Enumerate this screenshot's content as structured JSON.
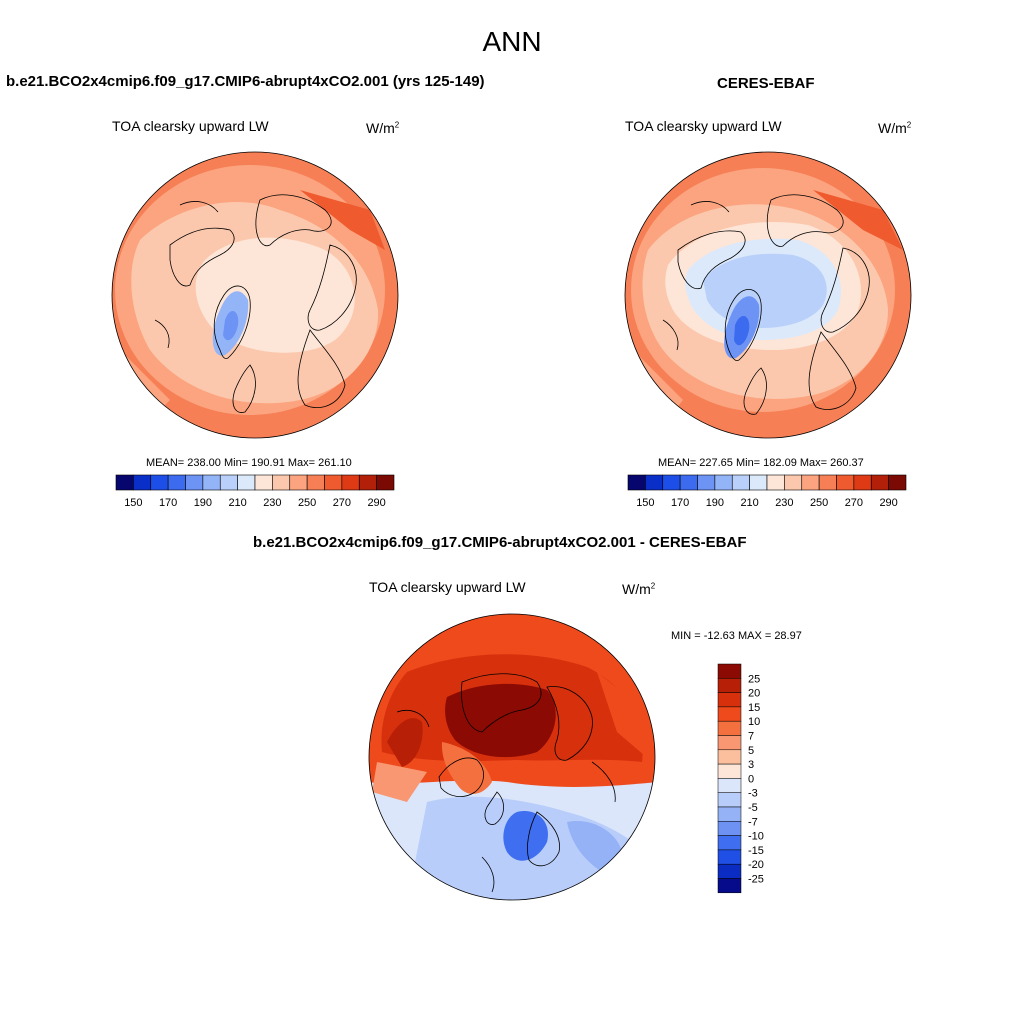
{
  "page": {
    "title": "ANN"
  },
  "panels": {
    "model": {
      "title": "b.e21.BCO2x4cmip6.f09_g17.CMIP6-abrupt4xCO2.001 (yrs 125-149)",
      "variable": "TOA clearsky upward LW",
      "units_base": "W/m",
      "units_exp": "2",
      "stats": "MEAN= 238.00  Min= 190.91  Max= 261.10"
    },
    "obs": {
      "title": "CERES-EBAF",
      "variable": "TOA clearsky upward LW",
      "units_base": "W/m",
      "units_exp": "2",
      "stats": "MEAN= 227.65  Min= 182.09  Max= 260.37"
    },
    "diff": {
      "title": "b.e21.BCO2x4cmip6.f09_g17.CMIP6-abrupt4xCO2.001 - CERES-EBAF",
      "variable": "TOA clearsky upward LW",
      "units_base": "W/m",
      "units_exp": "2",
      "stats": "MIN = -12.63 MAX =  28.97"
    }
  },
  "chart_data": [
    {
      "type": "heatmap",
      "projection": "north-polar-stereographic",
      "title": "b.e21.BCO2x4cmip6.f09_g17.CMIP6-abrupt4xCO2.001 (yrs 125-149)",
      "variable": "TOA clearsky upward LW",
      "units": "W/m2",
      "mean": 238.0,
      "min": 190.91,
      "max": 261.1,
      "colorbar": {
        "orientation": "horizontal",
        "levels": [
          150,
          160,
          170,
          180,
          190,
          200,
          210,
          220,
          230,
          240,
          250,
          260,
          270,
          280,
          290
        ],
        "tick_labels": [
          "150",
          "170",
          "190",
          "210",
          "230",
          "250",
          "270",
          "290"
        ],
        "colors": [
          "#06066e",
          "#0a2fc8",
          "#1d4fe8",
          "#3d6bf0",
          "#6d93f5",
          "#93b5f8",
          "#b9d0fa",
          "#dce9fb",
          "#fde6d7",
          "#fcc8ad",
          "#fba47f",
          "#f67f55",
          "#ef5a2e",
          "#dd3a15",
          "#b22009",
          "#7c0a04"
        ]
      }
    },
    {
      "type": "heatmap",
      "projection": "north-polar-stereographic",
      "title": "CERES-EBAF",
      "variable": "TOA clearsky upward LW",
      "units": "W/m2",
      "mean": 227.65,
      "min": 182.09,
      "max": 260.37,
      "colorbar": {
        "orientation": "horizontal",
        "levels": [
          150,
          160,
          170,
          180,
          190,
          200,
          210,
          220,
          230,
          240,
          250,
          260,
          270,
          280,
          290
        ],
        "tick_labels": [
          "150",
          "170",
          "190",
          "210",
          "230",
          "250",
          "270",
          "290"
        ],
        "colors": [
          "#06066e",
          "#0a2fc8",
          "#1d4fe8",
          "#3d6bf0",
          "#6d93f5",
          "#93b5f8",
          "#b9d0fa",
          "#dce9fb",
          "#fde6d7",
          "#fcc8ad",
          "#fba47f",
          "#f67f55",
          "#ef5a2e",
          "#dd3a15",
          "#b22009",
          "#7c0a04"
        ]
      }
    },
    {
      "type": "heatmap",
      "projection": "north-polar-stereographic",
      "title": "b.e21.BCO2x4cmip6.f09_g17.CMIP6-abrupt4xCO2.001 - CERES-EBAF",
      "variable": "TOA clearsky upward LW",
      "units": "W/m2",
      "min": -12.63,
      "max": 28.97,
      "colorbar": {
        "orientation": "vertical",
        "tick_labels": [
          "25",
          "20",
          "15",
          "10",
          "7",
          "5",
          "3",
          "0",
          "-3",
          "-5",
          "-7",
          "-10",
          "-15",
          "-20",
          "-25"
        ],
        "colors": [
          "#8b0a03",
          "#b81f07",
          "#d7300d",
          "#ee4a1c",
          "#f5703f",
          "#f99772",
          "#fbbf9e",
          "#fde6d7",
          "#dbe6fb",
          "#b8cdfa",
          "#95b2f7",
          "#6d92f3",
          "#3f6ef0",
          "#1f4fe4",
          "#0b2cc2",
          "#050b8a"
        ]
      }
    }
  ]
}
